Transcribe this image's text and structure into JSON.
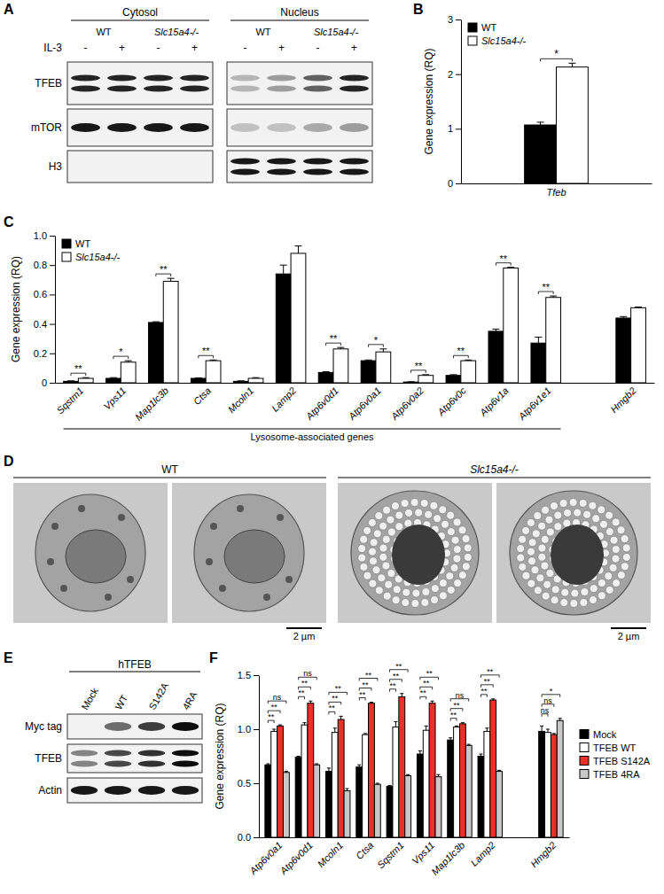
{
  "panel_labels": [
    "A",
    "B",
    "C",
    "D",
    "E",
    "F"
  ],
  "blot_a": {
    "sections": [
      "Cytosol",
      "Nucleus"
    ],
    "genotypes": [
      "WT",
      "Slc15a4-/-"
    ],
    "treatment_label": "IL-3",
    "treatment": [
      "-",
      "+"
    ],
    "rows": [
      "TFEB",
      "mTOR",
      "H3"
    ]
  },
  "em_d": {
    "titles": [
      "WT",
      "Slc15a4-/-"
    ],
    "scale_bar": "2 µm"
  },
  "blot_e": {
    "header": "hTFEB",
    "lanes": [
      "Mock",
      "WT",
      "S142A",
      "4RA"
    ],
    "rows": [
      "Myc tag",
      "TFEB",
      "Actin"
    ]
  },
  "chart_data": [
    {
      "type": "bar",
      "y_label": "Gene expression (RQ)",
      "categories": [
        "Tfeb"
      ],
      "series": [
        {
          "name": "WT",
          "color": "#000000",
          "values": [
            1.07
          ],
          "errors": [
            0.05
          ]
        },
        {
          "name": "Slc15a4-/-",
          "color": "#ffffff",
          "values": [
            2.13
          ],
          "errors": [
            0.07
          ]
        }
      ],
      "significance": [
        "*"
      ],
      "ylim": [
        0,
        3
      ],
      "yticks": [
        0,
        1,
        2,
        3
      ],
      "legend": "top-left"
    },
    {
      "type": "bar",
      "y_label": "Gene expression (RQ)",
      "categories": [
        "Sqstm1",
        "Vps11",
        "Map1lc3b",
        "Ctsa",
        "Mcoln1",
        "Lamp2",
        "Atp6v0d1",
        "Atp6v0a1",
        "Atp6v0a2",
        "Atp6v0c",
        "Atp6v1a",
        "Atp6v1e1",
        null,
        "Hmgb2"
      ],
      "series": [
        {
          "name": "WT",
          "color": "#000000",
          "values": [
            0.01,
            0.03,
            0.41,
            0.03,
            0.01,
            0.74,
            0.07,
            0.15,
            0.005,
            0.05,
            0.35,
            0.27,
            null,
            0.44
          ],
          "errors": [
            0.003,
            0.005,
            0.005,
            0.003,
            0.003,
            0.06,
            0.005,
            0.005,
            0.002,
            0.005,
            0.015,
            0.04,
            null,
            0.01
          ]
        },
        {
          "name": "Slc15a4-/-",
          "color": "#ffffff",
          "values": [
            0.03,
            0.14,
            0.69,
            0.15,
            0.03,
            0.88,
            0.23,
            0.21,
            0.05,
            0.15,
            0.78,
            0.58,
            null,
            0.51
          ],
          "errors": [
            0.005,
            0.01,
            0.02,
            0.005,
            0.005,
            0.05,
            0.01,
            0.02,
            0.005,
            0.005,
            0.005,
            0.01,
            null,
            0.005
          ]
        }
      ],
      "significance": [
        "**",
        "*",
        "**",
        "**",
        null,
        null,
        "**",
        "*",
        "**",
        "**",
        "**",
        "**",
        null,
        null
      ],
      "group_label": "Lysosome-associated genes",
      "ylim": [
        0,
        1
      ],
      "yticks": [
        0,
        0.2,
        0.4,
        0.6,
        0.8,
        {
          "value": 1,
          "label": "1.0"
        }
      ],
      "legend": "top-left"
    },
    {
      "type": "bar",
      "y_label": "Gene expression (RQ)",
      "categories": [
        "Atp6v0a1",
        "Atp6v0d1",
        "Mcoln1",
        "Ctsa",
        "Sqstm1",
        "Vps11",
        "Map1lc3b",
        "Lamp2",
        null,
        "Hmgb2"
      ],
      "series": [
        {
          "name": "Mock",
          "color": "#000000",
          "values": [
            0.67,
            0.74,
            0.61,
            0.65,
            0.47,
            0.77,
            0.9,
            0.75,
            null,
            0.98
          ],
          "errors": [
            0.01,
            0.01,
            0.03,
            0.02,
            0.01,
            0.03,
            0.02,
            0.02,
            null,
            0.05
          ]
        },
        {
          "name": "TFEB WT",
          "color": "#ffffff",
          "values": [
            0.98,
            1.04,
            0.97,
            0.95,
            1.02,
            0.99,
            1.02,
            0.98,
            null,
            0.97
          ],
          "errors": [
            0.02,
            0.02,
            0.04,
            0.01,
            0.05,
            0.04,
            0.01,
            0.03,
            null,
            0.03
          ]
        },
        {
          "name": "TFEB S142A",
          "color": "#e8312a",
          "values": [
            1.03,
            1.24,
            1.09,
            1.24,
            1.3,
            1.24,
            1.05,
            1.27,
            null,
            0.95
          ],
          "errors": [
            0.01,
            0.02,
            0.03,
            0.01,
            0.03,
            0.02,
            0.01,
            0.01,
            null,
            0.01
          ]
        },
        {
          "name": "TFEB 4RA",
          "color": "#c8c8c8",
          "values": [
            0.6,
            0.67,
            0.43,
            0.49,
            0.57,
            0.56,
            0.85,
            0.61,
            null,
            1.08
          ],
          "errors": [
            0.01,
            0.01,
            0.02,
            0.01,
            0.01,
            0.02,
            0.01,
            0.01,
            null,
            0.02
          ]
        }
      ],
      "significance": [
        [
          "**",
          "**",
          "ns"
        ],
        [
          "**",
          "**",
          "ns"
        ],
        [
          "**",
          "**",
          "**"
        ],
        [
          "**",
          "**",
          "**"
        ],
        [
          "**",
          "**",
          "**"
        ],
        [
          "**",
          "**",
          "**"
        ],
        [
          "**",
          "**",
          "ns"
        ],
        [
          "**",
          "**",
          "**"
        ],
        null,
        [
          "ns",
          "ns",
          "*"
        ]
      ],
      "ylim": [
        0,
        1.5
      ],
      "yticks": [
        {
          "value": 0,
          "label": "0.0"
        },
        0.5,
        {
          "value": 1,
          "label": "1.0"
        },
        1.5
      ],
      "legend": "right"
    }
  ]
}
